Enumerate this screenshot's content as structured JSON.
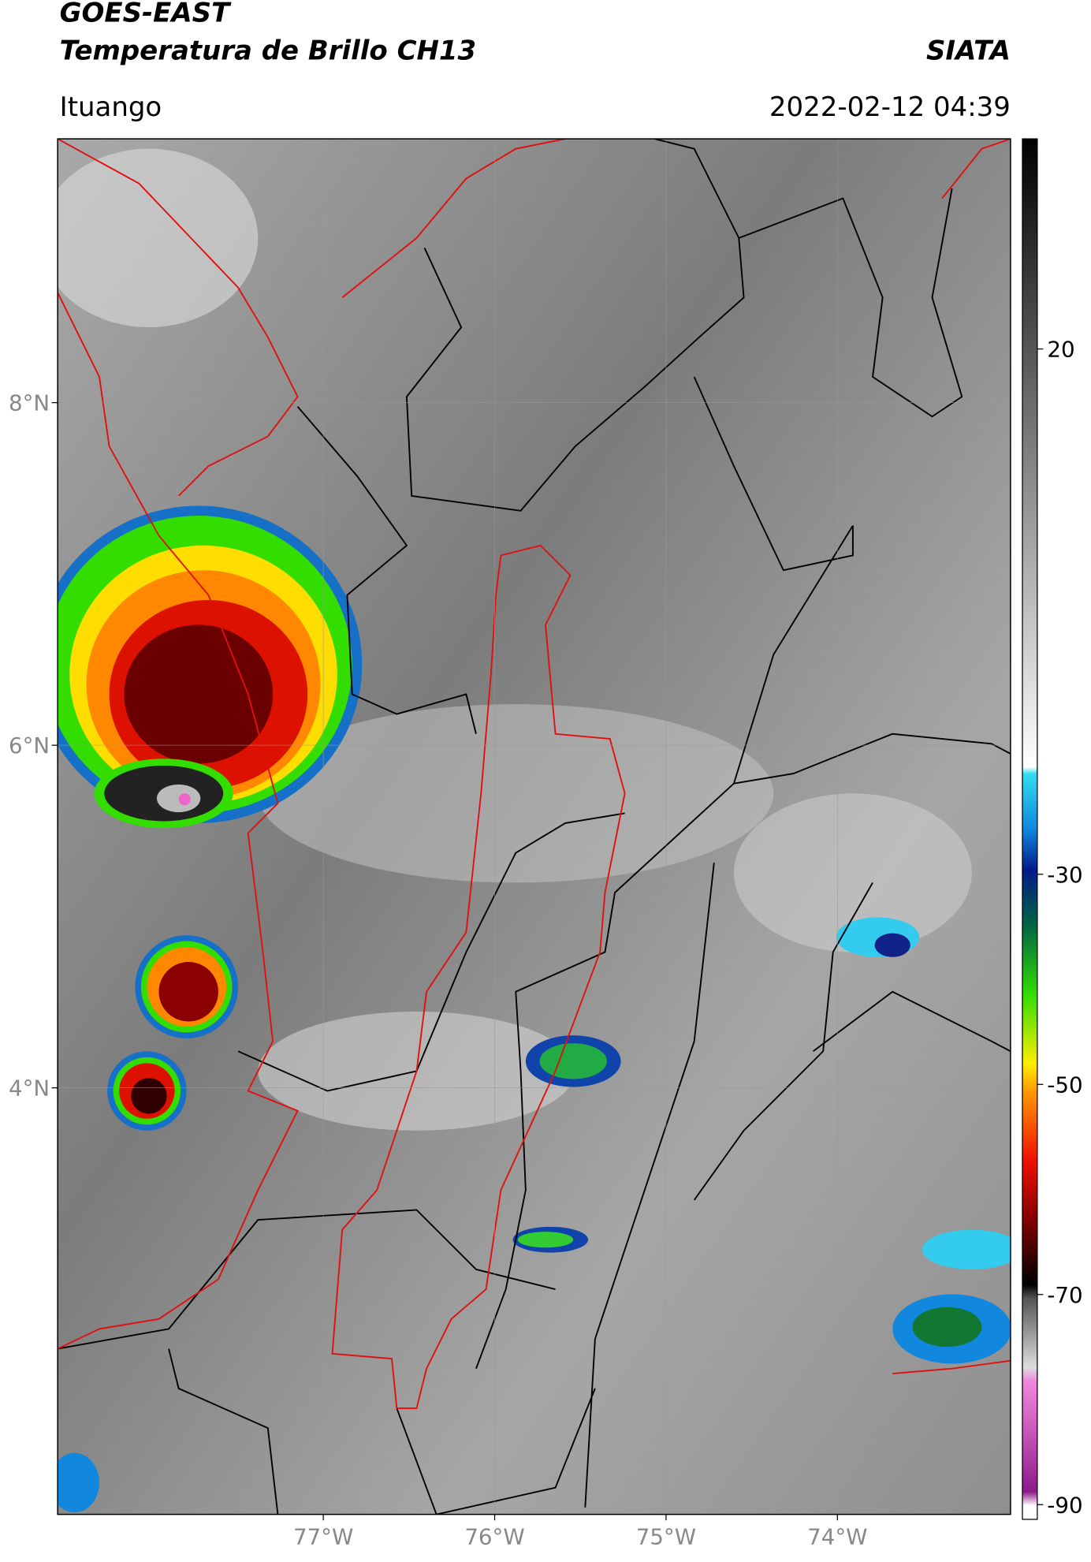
{
  "header": {
    "title": "GOES-EAST",
    "subtitle": "Temperatura de Brillo CH13",
    "source": "SIATA",
    "location": "Ituango",
    "datetime": "2022-02-12 04:39"
  },
  "map": {
    "latlim": [
      1.51,
      9.54
    ],
    "lonlim": [
      -78.55,
      -72.99
    ],
    "lat_ticks": [
      {
        "value": 8,
        "label": "8°N"
      },
      {
        "value": 6,
        "label": "6°N"
      },
      {
        "value": 4,
        "label": "4°N"
      }
    ],
    "lon_ticks": [
      {
        "value": -77,
        "label": "77°W"
      },
      {
        "value": -76,
        "label": "76°W"
      },
      {
        "value": -75,
        "label": "75°W"
      },
      {
        "value": -74,
        "label": "74°W"
      }
    ],
    "colorbar": {
      "lim": [
        -91.4,
        40
      ],
      "ticks": [
        20,
        -30,
        -50,
        -70,
        -90
      ]
    }
  }
}
